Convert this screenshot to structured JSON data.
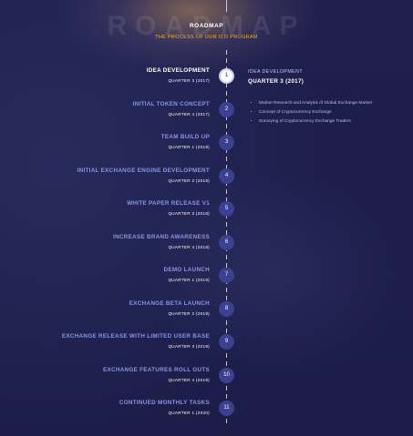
{
  "watermark": "ROADMAP",
  "header": {
    "title": "ROADMAP",
    "subtitle": "THE PROCESS OF OUR ICO PROGRAM"
  },
  "timeline": [
    {
      "number": "1",
      "phase": "IDEA DEVELOPMENT",
      "quarter": "QUARTER 3 (2017)",
      "active": true
    },
    {
      "number": "2",
      "phase": "INITIAL TOKEN CONCEPT",
      "quarter": "QUARTER 4 (2017)"
    },
    {
      "number": "3",
      "phase": "TEAM BUILD UP",
      "quarter": "QUARTER 1 (2018)"
    },
    {
      "number": "4",
      "phase": "INITIAL EXCHANGE ENGINE DEVELOPMENT",
      "quarter": "QUARTER 2 (2018)"
    },
    {
      "number": "5",
      "phase": "WHITE PAPER RELEASE V1",
      "quarter": "QUARTER 3 (2018)"
    },
    {
      "number": "6",
      "phase": "INCREASE BRAND AWARENESS",
      "quarter": "QUARTER 4 (2018)"
    },
    {
      "number": "7",
      "phase": "DEMO LAUNCH",
      "quarter": "QUARTER 1 (2019)"
    },
    {
      "number": "8",
      "phase": "EXCHANGE BETA LAUNCH",
      "quarter": "QUARTER 2 (2019)"
    },
    {
      "number": "9",
      "phase": "EXCHANGE RELEASE WITH LIMITED USER BASE",
      "quarter": "QUARTER 3 (2019)"
    },
    {
      "number": "10",
      "phase": "EXCHANGE FEATURES ROLL OUTS",
      "quarter": "QUARTER 4 (2019)"
    },
    {
      "number": "11",
      "phase": "CONTINUED MONTHLY TASKS",
      "quarter": "QUARTER 1 (2020)"
    }
  ],
  "detail": {
    "title": "IDEA DEVELOPMENT",
    "quarter": "QUARTER 3 (2017)",
    "items": [
      "Market Research and Analysis of Global Exchange Market",
      "Concept of Cryptocurrency Exchange",
      "Surveying of Cryptocurrency Exchange Traders"
    ]
  },
  "colors": {
    "background": "#1e1f4d",
    "accent_gold": "#e3b53f",
    "phase_blue": "#8a95e6",
    "circle": "#3b4090"
  }
}
